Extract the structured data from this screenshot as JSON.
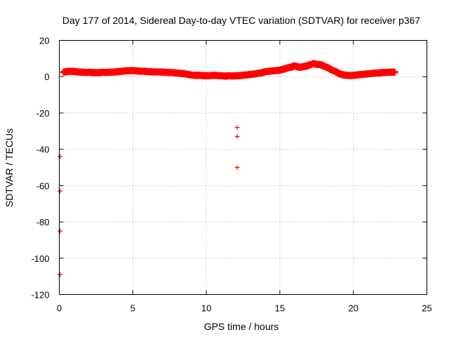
{
  "chart_data": {
    "type": "scatter",
    "title": "Day 177 of 2014, Sidereal Day-to-day VTEC variation (SDTVAR) for receiver p367",
    "xlabel": "GPS time / hours",
    "ylabel": "SDTVAR / TECUs",
    "xlim": [
      0,
      25
    ],
    "ylim": [
      -120,
      20
    ],
    "xticks": [
      0,
      5,
      10,
      15,
      20,
      25
    ],
    "yticks": [
      20,
      0,
      -20,
      -40,
      -60,
      -80,
      -100,
      -120
    ],
    "grid": true,
    "marker": "+",
    "color": "#ff0000",
    "series": [
      {
        "name": "SDTVAR",
        "x": [
          0.3,
          0.5,
          0.8,
          1.0,
          1.3,
          1.5,
          1.8,
          2.0,
          2.3,
          2.5,
          2.8,
          3.0,
          3.3,
          3.5,
          3.8,
          4.0,
          4.3,
          4.5,
          4.8,
          5.0,
          5.3,
          5.5,
          5.8,
          6.0,
          6.3,
          6.5,
          6.8,
          7.0,
          7.3,
          7.5,
          7.8,
          8.0,
          8.3,
          8.5,
          8.8,
          9.0,
          9.3,
          9.5,
          9.8,
          10.0,
          10.3,
          10.5,
          10.8,
          11.0,
          11.3,
          11.5,
          11.8,
          12.0,
          12.3,
          12.5,
          12.8,
          13.0,
          13.3,
          13.5,
          13.8,
          14.0,
          14.3,
          14.5,
          14.8,
          15.0,
          15.3,
          15.5,
          15.8,
          16.0,
          16.3,
          16.5,
          16.8,
          17.0,
          17.3,
          17.5,
          17.8,
          18.0,
          18.3,
          18.5,
          18.8,
          19.0,
          19.3,
          19.5,
          19.8,
          20.0,
          20.3,
          20.5,
          20.8,
          21.0,
          21.3,
          21.5,
          21.8,
          22.0,
          22.3,
          22.5,
          22.8,
          12.1,
          12.1,
          12.1,
          0.05,
          0.05,
          0.05,
          0.05
        ],
        "y": [
          2.5,
          2.8,
          3.0,
          2.8,
          2.6,
          2.5,
          2.4,
          2.4,
          2.3,
          2.2,
          2.3,
          2.4,
          2.4,
          2.5,
          2.6,
          2.8,
          3.0,
          3.2,
          3.3,
          3.4,
          3.2,
          3.0,
          3.0,
          2.8,
          2.7,
          2.6,
          2.6,
          2.5,
          2.4,
          2.3,
          2.2,
          2.0,
          1.8,
          1.6,
          1.2,
          0.9,
          0.7,
          0.8,
          0.6,
          0.5,
          0.6,
          0.8,
          0.6,
          0.5,
          0.3,
          0.5,
          0.4,
          0.5,
          0.6,
          0.8,
          1.0,
          1.2,
          1.5,
          1.8,
          2.2,
          2.7,
          3.0,
          3.2,
          3.4,
          3.6,
          4.2,
          4.8,
          5.3,
          6.0,
          5.2,
          5.4,
          5.8,
          6.4,
          7.2,
          6.8,
          6.6,
          5.8,
          4.8,
          3.8,
          2.8,
          1.8,
          1.0,
          0.8,
          0.6,
          0.7,
          1.0,
          1.2,
          1.4,
          1.6,
          1.8,
          2.0,
          2.1,
          2.3,
          2.4,
          2.5,
          2.5,
          -28,
          -33,
          -50,
          -44,
          -63,
          -85,
          -109
        ]
      }
    ]
  }
}
